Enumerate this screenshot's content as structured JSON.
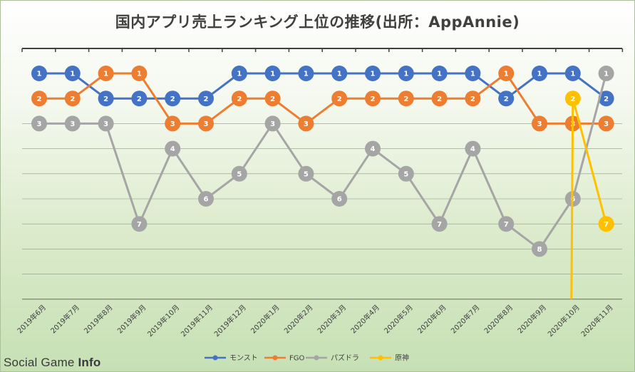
{
  "chart_data": {
    "type": "line",
    "title": "国内アプリ売上ランキング上位の推移(出所：AppAnnie)",
    "categories": [
      "2019年6月",
      "2019年7月",
      "2019年8月",
      "2019年9月",
      "2019年10月",
      "2019年11月",
      "2019年12月",
      "2020年1月",
      "2020年2月",
      "2020年3月",
      "2020年4月",
      "2020年5月",
      "2020年6月",
      "2020年7月",
      "2020年8月",
      "2020年9月",
      "2020年10月",
      "2020年11月"
    ],
    "ylim": [
      1,
      10
    ],
    "y_reversed": true,
    "grid": true,
    "legend_position": "bottom",
    "series": [
      {
        "name": "モンスト",
        "color": "#4472c4",
        "values": [
          1,
          1,
          2,
          2,
          2,
          2,
          1,
          1,
          1,
          1,
          1,
          1,
          1,
          1,
          2,
          1,
          1,
          2
        ]
      },
      {
        "name": "FGO",
        "color": "#ed7d31",
        "values": [
          2,
          2,
          1,
          1,
          3,
          3,
          2,
          2,
          3,
          2,
          2,
          2,
          2,
          2,
          1,
          3,
          3,
          3
        ]
      },
      {
        "name": "パズドラ",
        "color": "#a5a5a5",
        "values": [
          3,
          3,
          3,
          7,
          4,
          6,
          5,
          3,
          5,
          6,
          4,
          5,
          7,
          4,
          7,
          8,
          6,
          1
        ]
      },
      {
        "name": "原神",
        "color": "#ffc000",
        "values": [
          null,
          null,
          null,
          null,
          null,
          null,
          null,
          null,
          null,
          null,
          null,
          null,
          null,
          null,
          null,
          null,
          2,
          7
        ]
      }
    ]
  },
  "watermark": {
    "prefix": "Social Game ",
    "suffix": "Info"
  }
}
